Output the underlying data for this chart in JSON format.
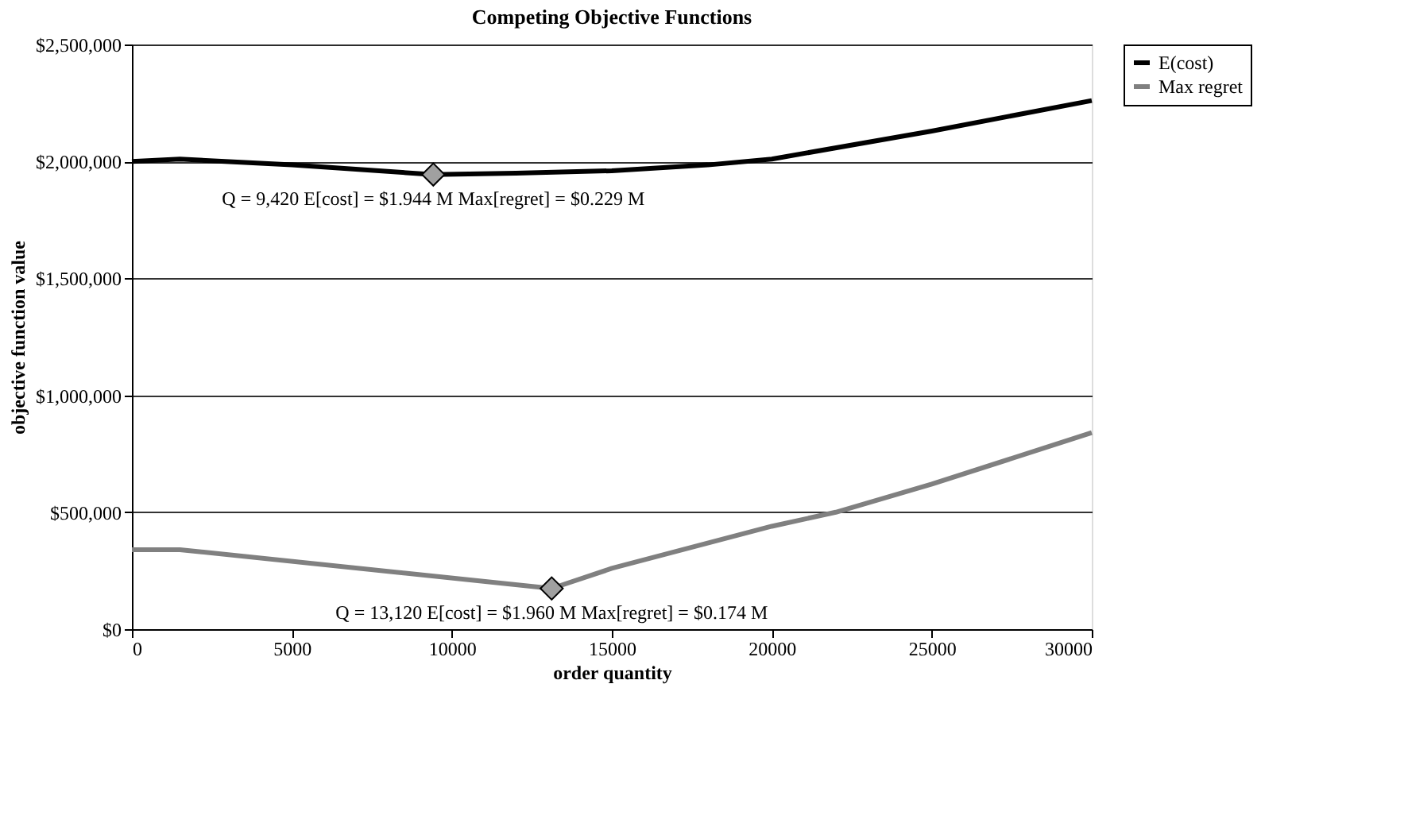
{
  "chart_data": {
    "type": "line",
    "title": "Competing Objective Functions",
    "xlabel": "order quantity",
    "ylabel": "objective function value",
    "xlim": [
      0,
      30000
    ],
    "xticks": [
      0,
      5000,
      10000,
      15000,
      20000,
      25000,
      30000
    ],
    "ylim": [
      0,
      2500000
    ],
    "yticks": [
      {
        "value": 0,
        "label": "$0"
      },
      {
        "value": 500000,
        "label": "$500,000"
      },
      {
        "value": 1000000,
        "label": "$1,000,000"
      },
      {
        "value": 1500000,
        "label": "$1,500,000"
      },
      {
        "value": 2000000,
        "label": "$2,000,000"
      },
      {
        "value": 2500000,
        "label": "$2,500,000"
      }
    ],
    "grid": "y",
    "legend": "right",
    "marker": "none",
    "line_style": "solid",
    "series": [
      {
        "name": "E(cost)",
        "color": "#000000",
        "x": [
          0,
          1500,
          5000,
          9420,
          12000,
          15000,
          18000,
          20000,
          25000,
          30000
        ],
        "values": [
          2000000,
          2010000,
          1985000,
          1944000,
          1950000,
          1960000,
          1985000,
          2010000,
          2130000,
          2260000
        ]
      },
      {
        "name": "Max regret",
        "color": "#808080",
        "x": [
          0,
          1500,
          13120,
          15000,
          20000,
          22000,
          25000,
          30000
        ],
        "values": [
          340000,
          340000,
          174000,
          260000,
          440000,
          500000,
          620000,
          840000
        ]
      },
      {
        "type": "scatter",
        "marker": "diamond",
        "color": "#a0a0a0",
        "x": [
          9420,
          13120
        ],
        "values": [
          1944000,
          174000
        ]
      }
    ],
    "annotations": [
      {
        "text": "Q =  9,420   E[cost] = $1.944 M   Max[regret] = $0.229 M",
        "x": 9420,
        "y": 1944000
      },
      {
        "text": "Q = 13,120   E[cost] = $1.960 M   Max[regret] = $0.174 M",
        "x": 13120,
        "y": 174000
      }
    ]
  }
}
